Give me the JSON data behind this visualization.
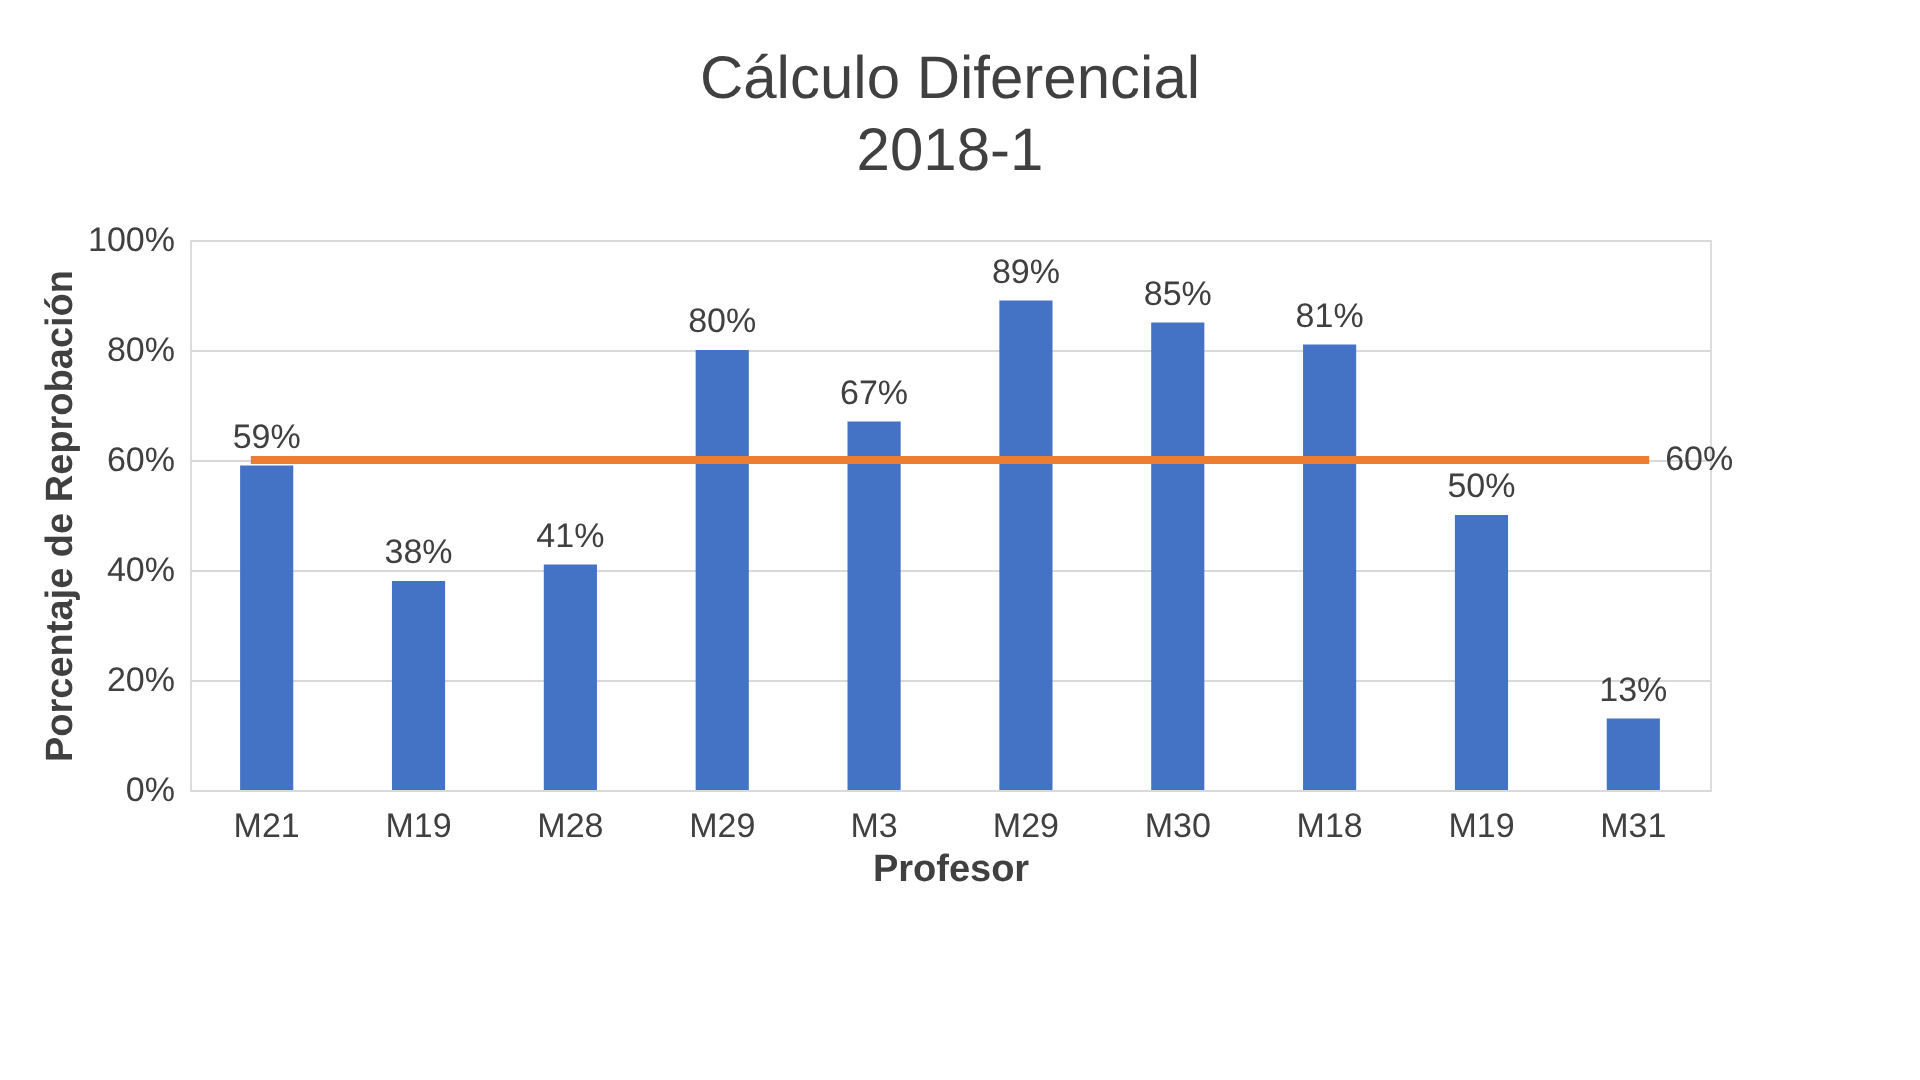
{
  "chart_data": {
    "type": "bar",
    "title": "Cálculo Diferencial",
    "subtitle": "2018-1",
    "xlabel": "Profesor",
    "ylabel": "Porcentaje de Reprobación",
    "categories": [
      "M21",
      "M19",
      "M28",
      "M29",
      "M3",
      "M29",
      "M30",
      "M18",
      "M19",
      "M31"
    ],
    "values": [
      59,
      38,
      41,
      80,
      67,
      89,
      85,
      81,
      50,
      13
    ],
    "value_labels": [
      "59%",
      "38%",
      "41%",
      "80%",
      "67%",
      "89%",
      "85%",
      "81%",
      "50%",
      "13%"
    ],
    "color": "#4472c4",
    "ylim": [
      0,
      100
    ],
    "yticks": [
      {
        "value": 0,
        "label": "0%"
      },
      {
        "value": 20,
        "label": "20%"
      },
      {
        "value": 40,
        "label": "40%"
      },
      {
        "value": 60,
        "label": "60%"
      },
      {
        "value": 80,
        "label": "80%"
      },
      {
        "value": 100,
        "label": "100%"
      }
    ],
    "ref_lines": [
      {
        "axis": "y",
        "value": 60,
        "label": "60%",
        "color": "#ed7d31"
      }
    ],
    "grid": "y"
  }
}
